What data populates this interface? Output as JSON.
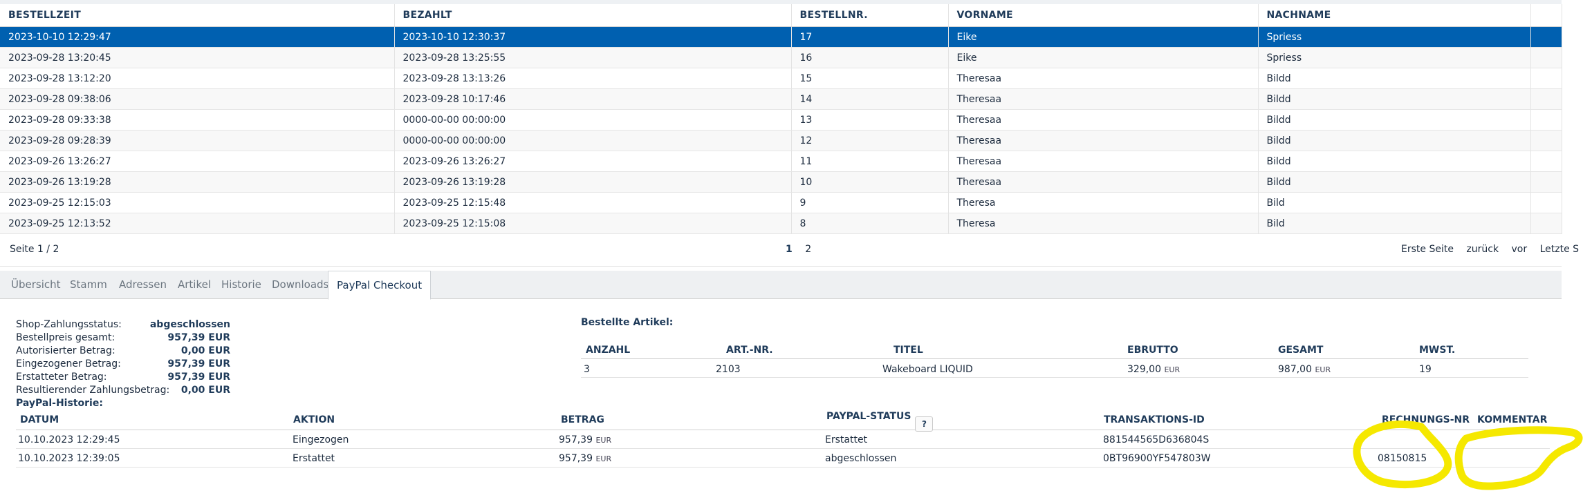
{
  "orders": {
    "columns": [
      "BESTELLZEIT",
      "BEZAHLT",
      "BESTELLNR.",
      "VORNAME",
      "NACHNAME"
    ],
    "rows": [
      {
        "time": "2023-10-10 12:29:47",
        "paid": "2023-10-10 12:30:37",
        "nr": "17",
        "first": "Eike",
        "last": "Spriess",
        "selected": true
      },
      {
        "time": "2023-09-28 13:20:45",
        "paid": "2023-09-28 13:25:55",
        "nr": "16",
        "first": "Eike",
        "last": "Spriess"
      },
      {
        "time": "2023-09-28 13:12:20",
        "paid": "2023-09-28 13:13:26",
        "nr": "15",
        "first": "Theresaa",
        "last": "Bildd"
      },
      {
        "time": "2023-09-28 09:38:06",
        "paid": "2023-09-28 10:17:46",
        "nr": "14",
        "first": "Theresaa",
        "last": "Bildd"
      },
      {
        "time": "2023-09-28 09:33:38",
        "paid": "0000-00-00 00:00:00",
        "nr": "13",
        "first": "Theresaa",
        "last": "Bildd"
      },
      {
        "time": "2023-09-28 09:28:39",
        "paid": "0000-00-00 00:00:00",
        "nr": "12",
        "first": "Theresaa",
        "last": "Bildd"
      },
      {
        "time": "2023-09-26 13:26:27",
        "paid": "2023-09-26 13:26:27",
        "nr": "11",
        "first": "Theresaa",
        "last": "Bildd"
      },
      {
        "time": "2023-09-26 13:19:28",
        "paid": "2023-09-26 13:19:28",
        "nr": "10",
        "first": "Theresaa",
        "last": "Bildd"
      },
      {
        "time": "2023-09-25 12:15:03",
        "paid": "2023-09-25 12:15:48",
        "nr": "9",
        "first": "Theresa",
        "last": "Bild"
      },
      {
        "time": "2023-09-25 12:13:52",
        "paid": "2023-09-25 12:15:08",
        "nr": "8",
        "first": "Theresa",
        "last": "Bild"
      }
    ]
  },
  "pager": {
    "page_info": "Seite 1 / 2",
    "page_1": "1",
    "page_2": "2",
    "first": "Erste Seite",
    "back": "zurück",
    "forward": "vor",
    "last": "Letzte S"
  },
  "tabs": [
    {
      "label": "Übersicht"
    },
    {
      "label": "Stamm"
    },
    {
      "label": "Adressen"
    },
    {
      "label": "Artikel"
    },
    {
      "label": "Historie"
    },
    {
      "label": "Downloads"
    },
    {
      "label": "PayPal Checkout",
      "active": true
    }
  ],
  "summary": {
    "status_label": "Shop-Zahlungsstatus:",
    "status_value": "abgeschlossen",
    "total_label": "Bestellpreis gesamt:",
    "total_value": "957,39 EUR",
    "authorized_label": "Autorisierter Betrag:",
    "authorized_value": "0,00 EUR",
    "collected_label": "Eingezogener Betrag:",
    "collected_value": "957,39 EUR",
    "refunded_label": "Erstatteter Betrag:",
    "refunded_value": "957,39 EUR",
    "resulting_label": "Resultierender Zahlungsbetrag:",
    "resulting_value": "0,00 EUR"
  },
  "articles": {
    "title": "Bestellte Artikel:",
    "headers": {
      "qty": "ANZAHL",
      "artnr": "ART.-NR.",
      "title": "TITEL",
      "ebrutto": "EBRUTTO",
      "total": "GESAMT",
      "vat": "MWST."
    },
    "row": {
      "qty": "3",
      "artnr": "2103",
      "title": "Wakeboard LIQUID",
      "ebrutto": "329,00",
      "total": "987,00",
      "currency": "EUR",
      "vat": "19"
    }
  },
  "history": {
    "title": "PayPal-Historie:",
    "headers": {
      "date": "DATUM",
      "action": "AKTION",
      "amount": "BETRAG",
      "status": "PAYPAL-STATUS",
      "help": "?",
      "txid": "TRANSAKTIONS-ID",
      "invoice": "RECHNUNGS-NR",
      "comment": "KOMMENTAR"
    },
    "rows": [
      {
        "date": "10.10.2023 12:29:45",
        "action": "Eingezogen",
        "amount": "957,39",
        "currency": "EUR",
        "status": "Erstattet",
        "txid": "881544565D636804S",
        "invoice": "",
        "comment": ""
      },
      {
        "date": "10.10.2023 12:39:05",
        "action": "Erstattet",
        "amount": "957,39",
        "currency": "EUR",
        "status": "abgeschlossen",
        "txid": "0BT96900YF547803W",
        "invoice": "08150815",
        "comment": ""
      }
    ]
  },
  "colors": {
    "selected_row": "#0060b0",
    "highlight": "#f5e800"
  }
}
